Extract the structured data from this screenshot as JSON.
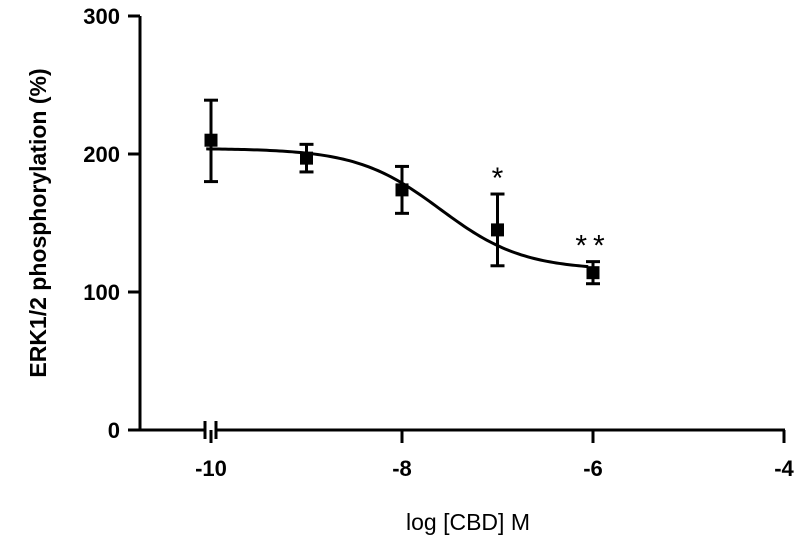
{
  "chart_data": {
    "type": "scatter",
    "title": "",
    "xlabel": "log [CBD] M",
    "ylabel": "ERK1/2 phosphorylation (%)",
    "xlim": [
      -10.7,
      -4
    ],
    "ylim": [
      0,
      300
    ],
    "xticks": [
      -10,
      -8,
      -6,
      -4
    ],
    "xtick_labels": [
      "-10",
      "-8",
      "-6",
      "-4"
    ],
    "yticks": [
      0,
      100,
      200,
      300
    ],
    "ytick_labels": [
      "0",
      "100",
      "200",
      "300"
    ],
    "axis_break": "x axis broken near -10",
    "grid": false,
    "legend": "none",
    "series": [
      {
        "name": "ERK1/2 phosphorylation",
        "marker": "square",
        "x": [
          -10,
          -9,
          -8,
          -7,
          -6
        ],
        "y": [
          210,
          197,
          174,
          145,
          114
        ],
        "error_upper": [
          239,
          207,
          191,
          171,
          122
        ],
        "error_lower": [
          180,
          187,
          157,
          119,
          106
        ]
      }
    ],
    "fit_curve": {
      "type": "sigmoidal dose-response",
      "top": 204,
      "bottom": 116,
      "log_ic50": -7.6,
      "hill_slope": 1,
      "x_range": [
        -10.05,
        -6.05
      ]
    },
    "annotations": [
      {
        "x": -7,
        "y": 171,
        "text": "*"
      },
      {
        "x": -6,
        "y": 122,
        "text": "**"
      }
    ]
  }
}
